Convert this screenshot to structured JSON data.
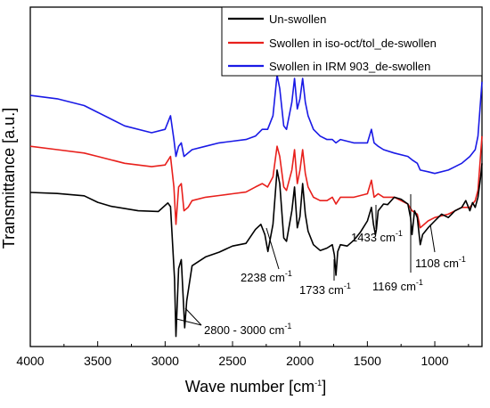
{
  "chart_data": {
    "type": "line",
    "xlabel_main": "Wave number [cm",
    "xlabel_sup": "-1",
    "xlabel_end": "]",
    "ylabel": "Transmittance [a.u.]",
    "xlim": [
      4000,
      650
    ],
    "x_reversed": true,
    "ylim": [
      0,
      1
    ],
    "y_ticks_shown": false,
    "x_ticks": [
      4000,
      3500,
      3000,
      2500,
      2000,
      1500,
      1000
    ],
    "legend_position": "top-right",
    "series": [
      {
        "name": "Un-swollen",
        "color": "#000000",
        "points": [
          [
            4000,
            0.454
          ],
          [
            3800,
            0.451
          ],
          [
            3600,
            0.444
          ],
          [
            3500,
            0.425
          ],
          [
            3400,
            0.413
          ],
          [
            3200,
            0.4
          ],
          [
            3050,
            0.398
          ],
          [
            2980,
            0.423
          ],
          [
            2960,
            0.412
          ],
          [
            2930,
            0.2
          ],
          [
            2920,
            0.03
          ],
          [
            2900,
            0.23
          ],
          [
            2880,
            0.256
          ],
          [
            2855,
            0.055
          ],
          [
            2840,
            0.135
          ],
          [
            2800,
            0.238
          ],
          [
            2700,
            0.264
          ],
          [
            2600,
            0.278
          ],
          [
            2500,
            0.296
          ],
          [
            2400,
            0.304
          ],
          [
            2330,
            0.345
          ],
          [
            2290,
            0.36
          ],
          [
            2260,
            0.33
          ],
          [
            2238,
            0.28
          ],
          [
            2200,
            0.36
          ],
          [
            2170,
            0.52
          ],
          [
            2150,
            0.48
          ],
          [
            2120,
            0.32
          ],
          [
            2100,
            0.31
          ],
          [
            2060,
            0.4
          ],
          [
            2040,
            0.47
          ],
          [
            2020,
            0.35
          ],
          [
            2000,
            0.383
          ],
          [
            1980,
            0.48
          ],
          [
            1960,
            0.39
          ],
          [
            1940,
            0.34
          ],
          [
            1900,
            0.3
          ],
          [
            1850,
            0.283
          ],
          [
            1800,
            0.29
          ],
          [
            1760,
            0.3
          ],
          [
            1745,
            0.27
          ],
          [
            1733,
            0.21
          ],
          [
            1720,
            0.28
          ],
          [
            1700,
            0.3
          ],
          [
            1650,
            0.296
          ],
          [
            1600,
            0.313
          ],
          [
            1550,
            0.338
          ],
          [
            1500,
            0.37
          ],
          [
            1470,
            0.41
          ],
          [
            1455,
            0.36
          ],
          [
            1440,
            0.33
          ],
          [
            1433,
            0.345
          ],
          [
            1420,
            0.4
          ],
          [
            1380,
            0.42
          ],
          [
            1350,
            0.418
          ],
          [
            1300,
            0.44
          ],
          [
            1250,
            0.434
          ],
          [
            1200,
            0.42
          ],
          [
            1180,
            0.38
          ],
          [
            1169,
            0.33
          ],
          [
            1150,
            0.4
          ],
          [
            1130,
            0.38
          ],
          [
            1108,
            0.3
          ],
          [
            1090,
            0.33
          ],
          [
            1050,
            0.35
          ],
          [
            1000,
            0.37
          ],
          [
            950,
            0.39
          ],
          [
            900,
            0.38
          ],
          [
            850,
            0.4
          ],
          [
            800,
            0.41
          ],
          [
            770,
            0.43
          ],
          [
            740,
            0.4
          ],
          [
            720,
            0.424
          ],
          [
            700,
            0.41
          ],
          [
            680,
            0.44
          ],
          [
            660,
            0.5
          ],
          [
            650,
            0.54
          ]
        ]
      },
      {
        "name": "Swollen in iso-oct/tol_de-swollen",
        "color": "#e8201c",
        "points": [
          [
            4000,
            0.59
          ],
          [
            3800,
            0.58
          ],
          [
            3600,
            0.57
          ],
          [
            3500,
            0.56
          ],
          [
            3300,
            0.54
          ],
          [
            3100,
            0.53
          ],
          [
            3000,
            0.535
          ],
          [
            2960,
            0.56
          ],
          [
            2935,
            0.47
          ],
          [
            2920,
            0.36
          ],
          [
            2900,
            0.47
          ],
          [
            2880,
            0.48
          ],
          [
            2860,
            0.4
          ],
          [
            2830,
            0.41
          ],
          [
            2800,
            0.43
          ],
          [
            2700,
            0.44
          ],
          [
            2600,
            0.445
          ],
          [
            2500,
            0.45
          ],
          [
            2400,
            0.455
          ],
          [
            2330,
            0.47
          ],
          [
            2280,
            0.48
          ],
          [
            2240,
            0.47
          ],
          [
            2200,
            0.5
          ],
          [
            2170,
            0.59
          ],
          [
            2150,
            0.56
          ],
          [
            2120,
            0.47
          ],
          [
            2100,
            0.46
          ],
          [
            2060,
            0.52
          ],
          [
            2040,
            0.58
          ],
          [
            2020,
            0.48
          ],
          [
            2000,
            0.52
          ],
          [
            1980,
            0.58
          ],
          [
            1960,
            0.51
          ],
          [
            1940,
            0.47
          ],
          [
            1900,
            0.44
          ],
          [
            1850,
            0.43
          ],
          [
            1800,
            0.43
          ],
          [
            1760,
            0.44
          ],
          [
            1733,
            0.42
          ],
          [
            1700,
            0.44
          ],
          [
            1600,
            0.44
          ],
          [
            1500,
            0.45
          ],
          [
            1470,
            0.49
          ],
          [
            1450,
            0.44
          ],
          [
            1420,
            0.45
          ],
          [
            1380,
            0.44
          ],
          [
            1300,
            0.44
          ],
          [
            1200,
            0.42
          ],
          [
            1169,
            0.4
          ],
          [
            1130,
            0.39
          ],
          [
            1108,
            0.35
          ],
          [
            1050,
            0.37
          ],
          [
            1000,
            0.38
          ],
          [
            900,
            0.39
          ],
          [
            800,
            0.41
          ],
          [
            740,
            0.41
          ],
          [
            700,
            0.43
          ],
          [
            680,
            0.46
          ],
          [
            650,
            0.62
          ]
        ]
      },
      {
        "name": "Swollen in IRM 903_de-swollen",
        "color": "#1a1ae6",
        "points": [
          [
            4000,
            0.74
          ],
          [
            3800,
            0.73
          ],
          [
            3600,
            0.71
          ],
          [
            3500,
            0.69
          ],
          [
            3300,
            0.65
          ],
          [
            3100,
            0.63
          ],
          [
            3000,
            0.64
          ],
          [
            2960,
            0.68
          ],
          [
            2935,
            0.61
          ],
          [
            2920,
            0.56
          ],
          [
            2900,
            0.59
          ],
          [
            2880,
            0.6
          ],
          [
            2860,
            0.56
          ],
          [
            2830,
            0.57
          ],
          [
            2800,
            0.58
          ],
          [
            2700,
            0.59
          ],
          [
            2600,
            0.6
          ],
          [
            2500,
            0.605
          ],
          [
            2400,
            0.61
          ],
          [
            2330,
            0.62
          ],
          [
            2280,
            0.64
          ],
          [
            2240,
            0.64
          ],
          [
            2200,
            0.68
          ],
          [
            2170,
            0.8
          ],
          [
            2150,
            0.76
          ],
          [
            2120,
            0.65
          ],
          [
            2100,
            0.64
          ],
          [
            2060,
            0.72
          ],
          [
            2040,
            0.79
          ],
          [
            2020,
            0.7
          ],
          [
            2000,
            0.73
          ],
          [
            1980,
            0.79
          ],
          [
            1960,
            0.72
          ],
          [
            1940,
            0.68
          ],
          [
            1900,
            0.64
          ],
          [
            1850,
            0.62
          ],
          [
            1800,
            0.61
          ],
          [
            1760,
            0.61
          ],
          [
            1733,
            0.6
          ],
          [
            1700,
            0.61
          ],
          [
            1600,
            0.6
          ],
          [
            1500,
            0.6
          ],
          [
            1470,
            0.64
          ],
          [
            1450,
            0.6
          ],
          [
            1420,
            0.59
          ],
          [
            1380,
            0.58
          ],
          [
            1300,
            0.57
          ],
          [
            1200,
            0.56
          ],
          [
            1169,
            0.55
          ],
          [
            1130,
            0.54
          ],
          [
            1108,
            0.52
          ],
          [
            1050,
            0.515
          ],
          [
            1000,
            0.51
          ],
          [
            900,
            0.52
          ],
          [
            800,
            0.54
          ],
          [
            740,
            0.56
          ],
          [
            700,
            0.58
          ],
          [
            680,
            0.62
          ],
          [
            650,
            0.78
          ]
        ]
      }
    ],
    "annotations": [
      {
        "text": "2800 - 3000 cm",
        "sup": "-1"
      },
      {
        "text": "2238 cm",
        "sup": "-1"
      },
      {
        "text": "1733 cm",
        "sup": "-1"
      },
      {
        "text": "1433 cm",
        "sup": "-1"
      },
      {
        "text": "1169 cm",
        "sup": "-1"
      },
      {
        "text": "1108 cm",
        "sup": "-1"
      }
    ]
  }
}
